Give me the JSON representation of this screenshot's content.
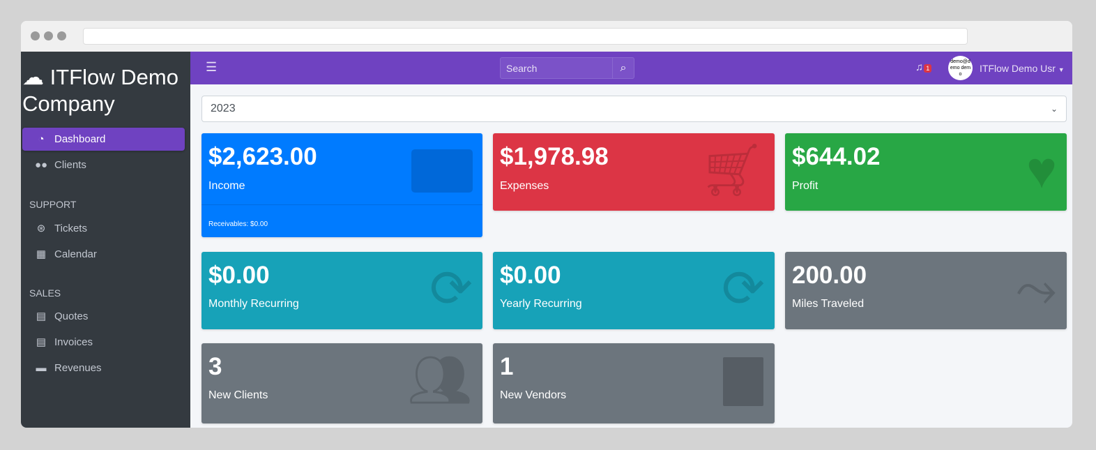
{
  "sidebar": {
    "brand": "ITFlow Demo Company",
    "items": [
      {
        "label": "Dashboard",
        "icon": "tachometer-icon",
        "active": true
      },
      {
        "label": "Clients",
        "icon": "users-icon"
      }
    ],
    "support_header": "SUPPORT",
    "support": [
      {
        "label": "Tickets",
        "icon": "life-ring-icon"
      },
      {
        "label": "Calendar",
        "icon": "calendar-icon"
      }
    ],
    "sales_header": "SALES",
    "sales": [
      {
        "label": "Quotes",
        "icon": "file-quote-icon"
      },
      {
        "label": "Invoices",
        "icon": "file-invoice-icon"
      },
      {
        "label": "Revenues",
        "icon": "credit-card-icon"
      }
    ]
  },
  "topbar": {
    "search_placeholder": "Search",
    "notification_count": "1",
    "avatar_text": "demo@demo demo",
    "user": "ITFlow Demo Usr"
  },
  "year_select": "2023",
  "cards": [
    {
      "value": "$2,623.00",
      "label": "Income",
      "footer": "Receivables: $0.00",
      "icon": "credit-card-icon"
    },
    {
      "value": "$1,978.98",
      "label": "Expenses",
      "icon": "cart-icon"
    },
    {
      "value": "$644.02",
      "label": "Profit",
      "icon": "heart-icon"
    },
    {
      "value": "$0.00",
      "label": "Monthly Recurring",
      "icon": "sync-icon"
    },
    {
      "value": "$0.00",
      "label": "Yearly Recurring",
      "icon": "sync-icon"
    },
    {
      "value": "200.00",
      "label": "Miles Traveled",
      "icon": "route-icon"
    },
    {
      "value": "3",
      "label": "New Clients",
      "icon": "users-icon"
    },
    {
      "value": "1",
      "label": "New Vendors",
      "icon": "building-icon"
    }
  ],
  "colors": {
    "primary": "#6f42c1",
    "sidebar": "#343a40",
    "income": "#007bff",
    "expenses": "#dc3545",
    "profit": "#28a745",
    "recurring": "#17a2b8",
    "neutral": "#6c757d"
  }
}
